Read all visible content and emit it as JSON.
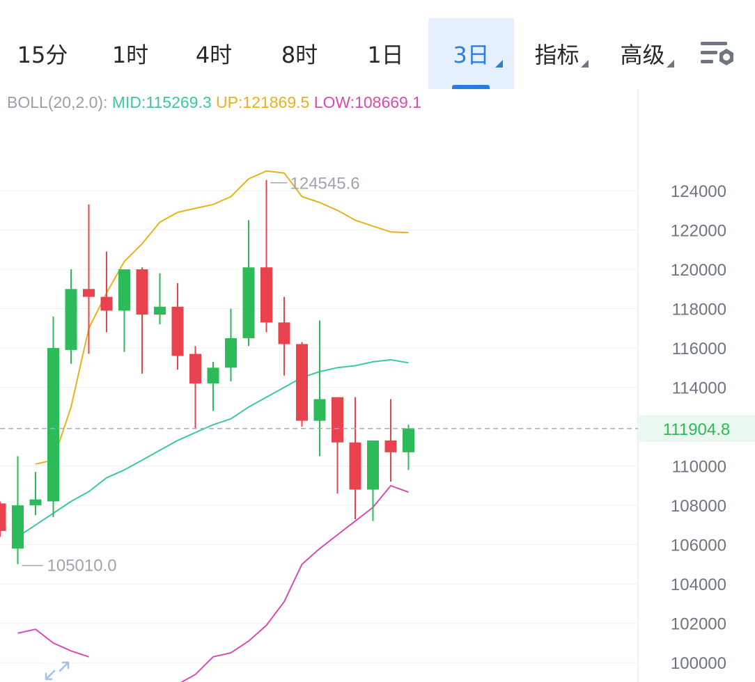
{
  "tabs": [
    {
      "label": "15分",
      "active": false,
      "dropdown": false
    },
    {
      "label": "1时",
      "active": false,
      "dropdown": false
    },
    {
      "label": "4时",
      "active": false,
      "dropdown": false
    },
    {
      "label": "8时",
      "active": false,
      "dropdown": false
    },
    {
      "label": "1日",
      "active": false,
      "dropdown": false
    },
    {
      "label": "3日",
      "active": true,
      "dropdown": true
    },
    {
      "label": "指标",
      "active": false,
      "dropdown": true
    },
    {
      "label": "高级",
      "active": false,
      "dropdown": true
    }
  ],
  "settings_icon": "chart-settings-icon",
  "indicator": {
    "name": "BOLL(20,2.0):",
    "mid": "MID:115269.3",
    "up": "UP:121869.5",
    "low": "LOW:108669.1",
    "colors": {
      "name": "#9aa0a8",
      "mid": "#3cc7a8",
      "up": "#e8b21a",
      "low": "#d94bb0"
    }
  },
  "colors": {
    "up_candle": "#2dbb5a",
    "down_candle": "#e8424f",
    "mid_line": "#3cc7a8",
    "upper_band": "#e8b21a",
    "lower_band": "#d94bb0",
    "price_tag_bg": "#eaf7ee",
    "price_tag_text": "#2dbb5a",
    "axis_text": "#6e7480",
    "marker_text": "#a0a5ad"
  },
  "chart_data": {
    "type": "candlestick",
    "y_ticks": [
      "124000",
      "122000",
      "120000",
      "118000",
      "116000",
      "114000",
      "110000",
      "108000",
      "106000",
      "104000",
      "102000",
      "100000"
    ],
    "ylim": [
      99000,
      125800
    ],
    "current_price": "111904.8",
    "high_marker": "124545.6",
    "low_marker": "105010.0",
    "candles": [
      {
        "o": 108100,
        "h": 108200,
        "l": 106400,
        "c": 106700
      },
      {
        "o": 105800,
        "h": 110500,
        "l": 105010,
        "c": 108000
      },
      {
        "o": 108000,
        "h": 109700,
        "l": 107500,
        "c": 108300
      },
      {
        "o": 108200,
        "h": 117600,
        "l": 107400,
        "c": 116000
      },
      {
        "o": 115900,
        "h": 120000,
        "l": 115200,
        "c": 119000
      },
      {
        "o": 119000,
        "h": 123300,
        "l": 115700,
        "c": 118600
      },
      {
        "o": 118600,
        "h": 120900,
        "l": 116800,
        "c": 117900
      },
      {
        "o": 117900,
        "h": 120000,
        "l": 115800,
        "c": 120000
      },
      {
        "o": 120000,
        "h": 120100,
        "l": 114700,
        "c": 117700
      },
      {
        "o": 117700,
        "h": 119800,
        "l": 117200,
        "c": 118100
      },
      {
        "o": 118100,
        "h": 119300,
        "l": 114900,
        "c": 115600
      },
      {
        "o": 115700,
        "h": 116100,
        "l": 111900,
        "c": 114200
      },
      {
        "o": 114200,
        "h": 115300,
        "l": 112800,
        "c": 115000
      },
      {
        "o": 115000,
        "h": 118000,
        "l": 114300,
        "c": 116500
      },
      {
        "o": 116500,
        "h": 122500,
        "l": 116100,
        "c": 120100
      },
      {
        "o": 120100,
        "h": 124545.6,
        "l": 116800,
        "c": 117300
      },
      {
        "o": 117300,
        "h": 118600,
        "l": 114600,
        "c": 116200
      },
      {
        "o": 116200,
        "h": 116300,
        "l": 112000,
        "c": 112300
      },
      {
        "o": 112300,
        "h": 117400,
        "l": 110500,
        "c": 113400
      },
      {
        "o": 113500,
        "h": 113500,
        "l": 108600,
        "c": 111200
      },
      {
        "o": 111200,
        "h": 113500,
        "l": 107300,
        "c": 108800
      },
      {
        "o": 108800,
        "h": 111300,
        "l": 107200,
        "c": 111300
      },
      {
        "o": 111300,
        "h": 113400,
        "l": 109200,
        "c": 110700
      },
      {
        "o": 110700,
        "h": 112100,
        "l": 109800,
        "c": 111904.8
      }
    ],
    "mid": [
      null,
      106400,
      107000,
      107600,
      108200,
      108700,
      109400,
      109800,
      110300,
      110800,
      111300,
      111700,
      112100,
      112400,
      113000,
      113500,
      114000,
      114500,
      114800,
      115000,
      115100,
      115300,
      115400,
      115250
    ],
    "upper": [
      null,
      null,
      110100,
      110300,
      113000,
      117000,
      118800,
      120400,
      121300,
      122400,
      122900,
      123100,
      123300,
      123700,
      124600,
      125000,
      124900,
      123700,
      123400,
      123000,
      122500,
      122200,
      121900,
      121870
    ],
    "lower": [
      null,
      101500,
      101700,
      101000,
      100600,
      100300,
      null,
      null,
      null,
      null,
      98900,
      99400,
      100300,
      100500,
      101100,
      101900,
      103100,
      105000,
      105800,
      106500,
      107200,
      107900,
      109000,
      108670
    ]
  }
}
